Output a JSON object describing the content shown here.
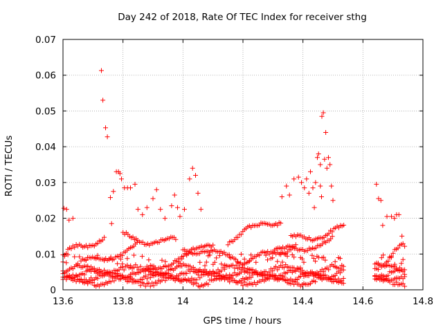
{
  "chart_data": {
    "type": "scatter",
    "title": "Day 242 of 2018, Rate Of TEC Index for receiver sthg",
    "xlabel": "GPS time / hours",
    "ylabel": "ROTI / TECUs",
    "xlim": [
      13.6,
      14.8
    ],
    "ylim": [
      0,
      0.07
    ],
    "xticks": [
      "13.6",
      "13.8",
      "14",
      "14.2",
      "14.4",
      "14.6",
      "14.8"
    ],
    "yticks": [
      "0",
      "0.01",
      "0.02",
      "0.03",
      "0.04",
      "0.05",
      "0.06",
      "0.07"
    ],
    "grid": true,
    "marker": "+",
    "color": "#ff0000",
    "segments": [
      {
        "x_start": 13.6,
        "x_end": 14.54
      },
      {
        "x_start": 14.64,
        "x_end": 14.74
      }
    ],
    "baseline_bands": [
      0.0025,
      0.0035,
      0.0045,
      0.0055
    ],
    "tracks": [
      {
        "x_start": 13.6,
        "x_end": 13.74,
        "y_start": 0.0095,
        "y_end": 0.015
      },
      {
        "x_start": 13.66,
        "x_end": 13.85,
        "y_start": 0.007,
        "y_end": 0.012
      },
      {
        "x_start": 13.8,
        "x_end": 13.98,
        "y_start": 0.015,
        "y_end": 0.013
      },
      {
        "x_start": 13.88,
        "x_end": 14.1,
        "y_start": 0.006,
        "y_end": 0.012
      },
      {
        "x_start": 14.0,
        "x_end": 14.2,
        "y_start": 0.012,
        "y_end": 0.008
      },
      {
        "x_start": 14.15,
        "x_end": 14.33,
        "y_start": 0.014,
        "y_end": 0.02
      },
      {
        "x_start": 14.2,
        "x_end": 14.38,
        "y_start": 0.007,
        "y_end": 0.013
      },
      {
        "x_start": 14.3,
        "x_end": 14.5,
        "y_start": 0.01,
        "y_end": 0.014
      },
      {
        "x_start": 14.36,
        "x_end": 14.54,
        "y_start": 0.014,
        "y_end": 0.017
      },
      {
        "x_start": 14.64,
        "x_end": 14.74,
        "y_start": 0.007,
        "y_end": 0.012
      }
    ],
    "points": [
      {
        "x": 13.603,
        "y": 0.0228
      },
      {
        "x": 13.612,
        "y": 0.0225
      },
      {
        "x": 13.62,
        "y": 0.0195
      },
      {
        "x": 13.633,
        "y": 0.02
      },
      {
        "x": 13.728,
        "y": 0.0613
      },
      {
        "x": 13.733,
        "y": 0.053
      },
      {
        "x": 13.742,
        "y": 0.0453
      },
      {
        "x": 13.748,
        "y": 0.0428
      },
      {
        "x": 13.758,
        "y": 0.0258
      },
      {
        "x": 13.762,
        "y": 0.0185
      },
      {
        "x": 13.768,
        "y": 0.0275
      },
      {
        "x": 13.778,
        "y": 0.033
      },
      {
        "x": 13.785,
        "y": 0.033
      },
      {
        "x": 13.79,
        "y": 0.0325
      },
      {
        "x": 13.795,
        "y": 0.031
      },
      {
        "x": 13.805,
        "y": 0.0285
      },
      {
        "x": 13.815,
        "y": 0.0285
      },
      {
        "x": 13.825,
        "y": 0.0285
      },
      {
        "x": 13.84,
        "y": 0.0295
      },
      {
        "x": 13.85,
        "y": 0.0225
      },
      {
        "x": 13.865,
        "y": 0.021
      },
      {
        "x": 13.88,
        "y": 0.023
      },
      {
        "x": 13.9,
        "y": 0.0255
      },
      {
        "x": 13.912,
        "y": 0.028
      },
      {
        "x": 13.925,
        "y": 0.0225
      },
      {
        "x": 13.94,
        "y": 0.02
      },
      {
        "x": 13.962,
        "y": 0.0235
      },
      {
        "x": 13.972,
        "y": 0.0265
      },
      {
        "x": 13.982,
        "y": 0.023
      },
      {
        "x": 13.99,
        "y": 0.0205
      },
      {
        "x": 14.005,
        "y": 0.0225
      },
      {
        "x": 14.022,
        "y": 0.031
      },
      {
        "x": 14.032,
        "y": 0.034
      },
      {
        "x": 14.042,
        "y": 0.032
      },
      {
        "x": 14.05,
        "y": 0.027
      },
      {
        "x": 14.06,
        "y": 0.0225
      },
      {
        "x": 14.33,
        "y": 0.026
      },
      {
        "x": 14.345,
        "y": 0.029
      },
      {
        "x": 14.355,
        "y": 0.0265
      },
      {
        "x": 14.37,
        "y": 0.031
      },
      {
        "x": 14.385,
        "y": 0.0315
      },
      {
        "x": 14.395,
        "y": 0.03
      },
      {
        "x": 14.405,
        "y": 0.0285
      },
      {
        "x": 14.412,
        "y": 0.031
      },
      {
        "x": 14.42,
        "y": 0.027
      },
      {
        "x": 14.425,
        "y": 0.033
      },
      {
        "x": 14.433,
        "y": 0.0285
      },
      {
        "x": 14.438,
        "y": 0.023
      },
      {
        "x": 14.442,
        "y": 0.03
      },
      {
        "x": 14.448,
        "y": 0.037
      },
      {
        "x": 14.452,
        "y": 0.038
      },
      {
        "x": 14.458,
        "y": 0.035
      },
      {
        "x": 14.463,
        "y": 0.0485
      },
      {
        "x": 14.468,
        "y": 0.0495
      },
      {
        "x": 14.472,
        "y": 0.0365
      },
      {
        "x": 14.476,
        "y": 0.044
      },
      {
        "x": 14.48,
        "y": 0.034
      },
      {
        "x": 14.485,
        "y": 0.037
      },
      {
        "x": 14.49,
        "y": 0.035
      },
      {
        "x": 14.495,
        "y": 0.029
      },
      {
        "x": 14.5,
        "y": 0.025
      },
      {
        "x": 14.458,
        "y": 0.029
      },
      {
        "x": 14.462,
        "y": 0.026
      },
      {
        "x": 14.645,
        "y": 0.0295
      },
      {
        "x": 14.652,
        "y": 0.0255
      },
      {
        "x": 14.66,
        "y": 0.025
      },
      {
        "x": 14.666,
        "y": 0.018
      },
      {
        "x": 14.68,
        "y": 0.0205
      },
      {
        "x": 14.695,
        "y": 0.0205
      },
      {
        "x": 14.705,
        "y": 0.02
      },
      {
        "x": 14.712,
        "y": 0.021
      },
      {
        "x": 14.72,
        "y": 0.021
      },
      {
        "x": 14.73,
        "y": 0.015
      }
    ]
  }
}
